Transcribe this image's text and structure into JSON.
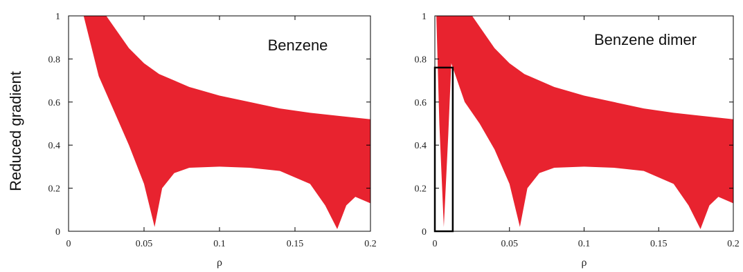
{
  "figure": {
    "ylabel": "Reduced gradient",
    "color": "#e8232f"
  },
  "chart_data": [
    {
      "type": "scatter",
      "title": "Benzene",
      "xlabel": "ρ",
      "ylabel": "Reduced gradient",
      "xlim": [
        0,
        0.2
      ],
      "ylim": [
        0,
        1
      ],
      "xticks": [
        "0",
        "0.05",
        "0.1",
        "0.15",
        "0.2"
      ],
      "yticks": [
        "0",
        "0.2",
        "0.4",
        "0.6",
        "0.8",
        "1"
      ],
      "series": [
        {
          "upper_envelope": [
            [
              0.01,
              1.0
            ],
            [
              0.025,
              1.0
            ],
            [
              0.03,
              0.95
            ],
            [
              0.04,
              0.85
            ],
            [
              0.05,
              0.78
            ],
            [
              0.06,
              0.73
            ],
            [
              0.08,
              0.67
            ],
            [
              0.1,
              0.63
            ],
            [
              0.12,
              0.6
            ],
            [
              0.14,
              0.57
            ],
            [
              0.16,
              0.55
            ],
            [
              0.18,
              0.535
            ],
            [
              0.2,
              0.52
            ]
          ],
          "lower_envelope": [
            [
              0.01,
              1.0
            ],
            [
              0.02,
              0.72
            ],
            [
              0.03,
              0.56
            ],
            [
              0.04,
              0.4
            ],
            [
              0.05,
              0.22
            ],
            [
              0.057,
              0.02
            ],
            [
              0.062,
              0.2
            ],
            [
              0.07,
              0.27
            ],
            [
              0.08,
              0.295
            ],
            [
              0.1,
              0.3
            ],
            [
              0.12,
              0.295
            ],
            [
              0.14,
              0.28
            ],
            [
              0.16,
              0.22
            ],
            [
              0.17,
              0.12
            ],
            [
              0.178,
              0.01
            ],
            [
              0.184,
              0.12
            ],
            [
              0.19,
              0.16
            ],
            [
              0.2,
              0.13
            ]
          ]
        }
      ]
    },
    {
      "type": "scatter",
      "title": "Benzene dimer",
      "xlabel": "ρ",
      "ylabel": "",
      "xlim": [
        0,
        0.2
      ],
      "ylim": [
        0,
        1
      ],
      "xticks": [
        "0",
        "0.05",
        "0.1",
        "0.15",
        "0.2"
      ],
      "yticks": [
        "0",
        "0.2",
        "0.4",
        "0.6",
        "0.8",
        "1"
      ],
      "series": [
        {
          "upper_envelope": [
            [
              0.001,
              1.0
            ],
            [
              0.025,
              1.0
            ],
            [
              0.03,
              0.95
            ],
            [
              0.04,
              0.85
            ],
            [
              0.05,
              0.78
            ],
            [
              0.06,
              0.73
            ],
            [
              0.08,
              0.67
            ],
            [
              0.1,
              0.63
            ],
            [
              0.12,
              0.6
            ],
            [
              0.14,
              0.57
            ],
            [
              0.16,
              0.55
            ],
            [
              0.18,
              0.535
            ],
            [
              0.2,
              0.52
            ]
          ],
          "lower_envelope": [
            [
              0.001,
              1.0
            ],
            [
              0.003,
              0.5
            ],
            [
              0.006,
              0.02
            ],
            [
              0.009,
              0.45
            ],
            [
              0.011,
              0.78
            ],
            [
              0.02,
              0.6
            ],
            [
              0.03,
              0.5
            ],
            [
              0.04,
              0.38
            ],
            [
              0.05,
              0.22
            ],
            [
              0.057,
              0.02
            ],
            [
              0.062,
              0.2
            ],
            [
              0.07,
              0.27
            ],
            [
              0.08,
              0.295
            ],
            [
              0.1,
              0.3
            ],
            [
              0.12,
              0.295
            ],
            [
              0.14,
              0.28
            ],
            [
              0.16,
              0.22
            ],
            [
              0.17,
              0.12
            ],
            [
              0.178,
              0.01
            ],
            [
              0.184,
              0.12
            ],
            [
              0.19,
              0.16
            ],
            [
              0.2,
              0.13
            ]
          ]
        }
      ],
      "annotations": [
        {
          "type": "box",
          "x": [
            0,
            0.012
          ],
          "y": [
            0,
            0.76
          ]
        }
      ]
    }
  ]
}
